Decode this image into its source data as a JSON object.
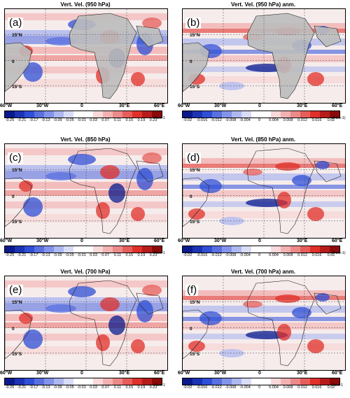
{
  "panels": [
    {
      "letter": "(a)",
      "title": "Vert. Vel. (950 hPa)",
      "units": "Pa.s-1",
      "type": "total"
    },
    {
      "letter": "(b)",
      "title": "Vert. Vel. (950 hPa) anm.",
      "units": "(Pa.s-1)",
      "type": "anom"
    },
    {
      "letter": "(c)",
      "title": "Vert. Vel. (850 hPa)",
      "units": "Pa.s-1",
      "type": "total"
    },
    {
      "letter": "(d)",
      "title": "Vert. Vel. (850 hPa) anm.",
      "units": "(Pa.s-1)",
      "type": "anom"
    },
    {
      "letter": "(e)",
      "title": "Vert. Vel. (700 hPa)",
      "units": "Pa.s-1",
      "type": "total"
    },
    {
      "letter": "(f)",
      "title": "Vert. Vel. (700 hPa) anm.",
      "units": "Pa.s-1",
      "type": "anom"
    }
  ],
  "lat_labels": [
    "15°N",
    "0",
    "15°S"
  ],
  "lon_labels": [
    "60°W",
    "30°W",
    "0",
    "30°E",
    "60°E"
  ],
  "colorbar_total": [
    "-0.25",
    "-0.21",
    "-0.17",
    "-0.13",
    "-0.09",
    "-0.05",
    "-0.01",
    "0.03",
    "0.07",
    "0.11",
    "0.15",
    "0.19",
    "0.23"
  ],
  "colorbar_anom": [
    "-0.02",
    "-0.016",
    "-0.012",
    "-0.008",
    "-0.004",
    "0",
    "0.004",
    "0.008",
    "0.012",
    "0.016",
    "0.02"
  ],
  "colors": {
    "blue_dark": "#0a1a8c",
    "blue": "#2f4fd6",
    "blue_light": "#aeb8f0",
    "white": "#ffffff",
    "red_light": "#f3b1b1",
    "red": "#e0302a",
    "red_dark": "#8c0a0a",
    "land": "#bdbdbd"
  }
}
